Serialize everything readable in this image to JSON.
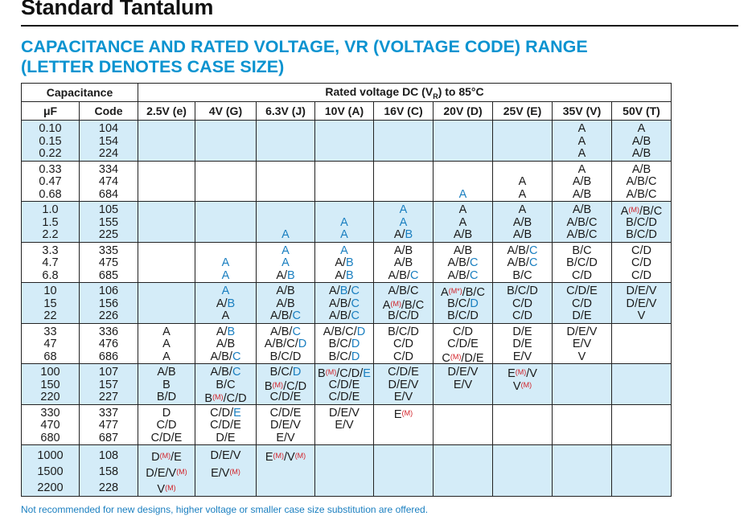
{
  "header": {
    "title": "Standard Tantalum",
    "subtitle_line1": "CAPACITANCE AND RATED VOLTAGE, VR (VOLTAGE CODE) RANGE",
    "subtitle_line2": "(LETTER DENOTES CASE SIZE)"
  },
  "table": {
    "capacitance_header": "Capacitance",
    "voltage_header_prefix": "Rated voltage DC (V",
    "voltage_header_sub": "R",
    "voltage_header_suffix": ") to 85°C",
    "col_uf": "μF",
    "col_code": "Code",
    "voltages": [
      "2.5V (e)",
      "4V (G)",
      "6.3V (J)",
      "10V (A)",
      "16V (C)",
      "20V (D)",
      "25V (E)",
      "35V (V)",
      "50V (T)"
    ],
    "groups": [
      {
        "style": "blue",
        "uf": [
          "0.10",
          "0.15",
          "0.22"
        ],
        "code": [
          "104",
          "154",
          "224"
        ],
        "cells": [
          [],
          [],
          [],
          [],
          [],
          [],
          [],
          [
            "A",
            "A",
            "A"
          ],
          [
            "A",
            "A/B",
            "A/B"
          ]
        ]
      },
      {
        "style": "white",
        "uf": [
          "0.33",
          "0.47",
          "0.68"
        ],
        "code": [
          "334",
          "474",
          "684"
        ],
        "cells": [
          [],
          [],
          [],
          [],
          [],
          [
            "",
            "",
            "~A"
          ],
          [
            "",
            "A",
            "A"
          ],
          [
            "A",
            "A/B",
            "A/B"
          ],
          [
            "A/B",
            "A/B/C",
            "A/B/C"
          ]
        ]
      },
      {
        "style": "blue",
        "uf": [
          "1.0",
          "1.5",
          "2.2"
        ],
        "code": [
          "105",
          "155",
          "225"
        ],
        "cells": [
          [],
          [],
          [
            "",
            "",
            "~A"
          ],
          [
            "",
            "~A",
            "~A"
          ],
          [
            "~A",
            "~A",
            "A/~B"
          ],
          [
            "A",
            "A",
            "A/B"
          ],
          [
            "A",
            "A/B",
            "A/B"
          ],
          [
            "A/B",
            "A/B/C",
            "A/B/C"
          ],
          [
            "A^M/B/C",
            "B/C/D",
            "B/C/D"
          ]
        ]
      },
      {
        "style": "white",
        "uf": [
          "3.3",
          "4.7",
          "6.8"
        ],
        "code": [
          "335",
          "475",
          "685"
        ],
        "cells": [
          [],
          [
            "",
            "~A",
            "~A"
          ],
          [
            "~A",
            "~A",
            "A/~B"
          ],
          [
            "~A",
            "A/~B",
            "A/~B"
          ],
          [
            "A/B",
            "A/B",
            "A/B/~C"
          ],
          [
            "A/B",
            "A/B/~C",
            "A/B/~C"
          ],
          [
            "A/B/~C",
            "A/B/~C",
            "B/C"
          ],
          [
            "B/C",
            "B/C/D",
            "C/D"
          ],
          [
            "C/D",
            "C/D",
            "C/D"
          ]
        ]
      },
      {
        "style": "blue",
        "uf": [
          "10",
          "15",
          "22"
        ],
        "code": [
          "106",
          "156",
          "226"
        ],
        "cells": [
          [],
          [
            "~A",
            "A/~B",
            "A"
          ],
          [
            "A/B",
            "A/B",
            "A/B/~C"
          ],
          [
            "A/~B/~C",
            "A/B/~C",
            "A/B/~C"
          ],
          [
            "A/B/C",
            "A^M/B/C",
            "B/C/D"
          ],
          [
            "A^M*/B/C",
            "B/C/~D",
            "B/C/D"
          ],
          [
            "B/C/D",
            "C/D",
            "C/D"
          ],
          [
            "C/D/E",
            "C/D",
            "D/E"
          ],
          [
            "D/E/V",
            "D/E/V",
            "V"
          ]
        ]
      },
      {
        "style": "white",
        "uf": [
          "33",
          "47",
          "68"
        ],
        "code": [
          "336",
          "476",
          "686"
        ],
        "cells": [
          [
            "A",
            "A",
            "A"
          ],
          [
            "A/~B",
            "A/B",
            "A/B/~C"
          ],
          [
            "A/B/~C",
            "A/B/C/~D",
            "B/C/D"
          ],
          [
            "A/B/C/~D",
            "B/C/~D",
            "B/C/~D"
          ],
          [
            "B/C/D",
            "C/D",
            "C/D"
          ],
          [
            "C/D",
            "C/D/E",
            "C^M/D/E"
          ],
          [
            "D/E",
            "D/E",
            "E/V"
          ],
          [
            "D/E/V",
            "E/V",
            "V"
          ],
          []
        ]
      },
      {
        "style": "blue",
        "uf": [
          "100",
          "150",
          "220"
        ],
        "code": [
          "107",
          "157",
          "227"
        ],
        "cells": [
          [
            "A/B",
            "B",
            "B/D"
          ],
          [
            "A/B/~C",
            "B/C",
            "B^M/C/D"
          ],
          [
            "B/C/~D",
            "B^M/C/D",
            "C/D/E"
          ],
          [
            "B^M/C/D/~E",
            "C/D/E",
            "C/D/E"
          ],
          [
            "C/D/E",
            "D/E/V",
            "E/V"
          ],
          [
            "D/E/V",
            "E/V",
            ""
          ],
          [
            "E^M/V",
            "V^M",
            ""
          ],
          [],
          []
        ]
      },
      {
        "style": "white",
        "uf": [
          "330",
          "470",
          "680"
        ],
        "code": [
          "337",
          "477",
          "687"
        ],
        "cells": [
          [
            "D",
            "C/D",
            "C/D/E"
          ],
          [
            "C/D/~E",
            "C/D/E",
            "D/E"
          ],
          [
            "C/D/E",
            "D/E/V",
            "E/V"
          ],
          [
            "D/E/V",
            "E/V",
            ""
          ],
          [
            "E^M",
            "",
            ""
          ],
          [],
          [],
          [],
          []
        ]
      },
      {
        "style": "blue",
        "uf": [
          "1000",
          "1500",
          "2200"
        ],
        "code": [
          "108",
          "158",
          "228"
        ],
        "cells": [
          [
            "D^M/E",
            "D/E/V^M",
            "V^M"
          ],
          [
            "D/E/V",
            "E/V^M",
            ""
          ],
          [
            "E^M/V^M",
            "",
            ""
          ],
          [],
          [],
          [],
          [],
          [],
          []
        ]
      }
    ]
  },
  "footnote": "Not recommended for new designs, higher voltage or smaller case size substitution are offered.",
  "colors": {
    "accent_blue": "#0b93d0",
    "row_band": "#d4ecf8",
    "marker_red": "#d21f26"
  }
}
